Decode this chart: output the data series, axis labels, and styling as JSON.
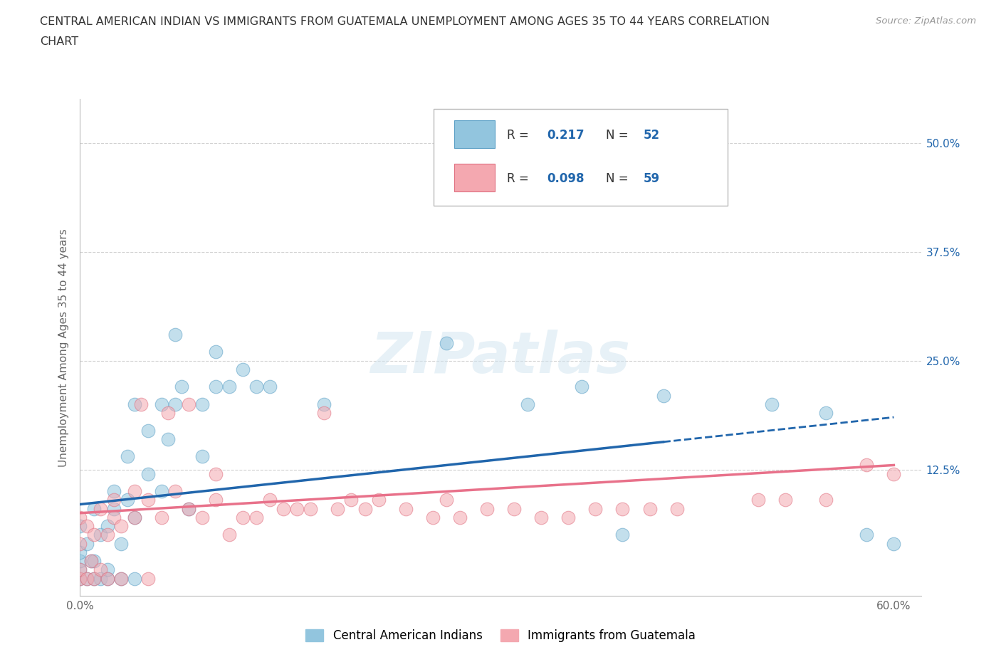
{
  "title_line1": "CENTRAL AMERICAN INDIAN VS IMMIGRANTS FROM GUATEMALA UNEMPLOYMENT AMONG AGES 35 TO 44 YEARS CORRELATION",
  "title_line2": "CHART",
  "source": "Source: ZipAtlas.com",
  "ylabel": "Unemployment Among Ages 35 to 44 years",
  "xlim": [
    0.0,
    0.62
  ],
  "ylim": [
    -0.02,
    0.55
  ],
  "xticks": [
    0.0,
    0.1,
    0.2,
    0.3,
    0.4,
    0.5,
    0.6
  ],
  "xticklabels": [
    "0.0%",
    "",
    "",
    "",
    "",
    "",
    "60.0%"
  ],
  "yticks": [
    0.0,
    0.125,
    0.25,
    0.375,
    0.5
  ],
  "right_yticklabels": [
    "",
    "12.5%",
    "25.0%",
    "37.5%",
    "50.0%"
  ],
  "R_blue": "0.217",
  "N_blue": "52",
  "R_pink": "0.098",
  "N_pink": "59",
  "blue_color": "#92c5de",
  "pink_color": "#f4a8b0",
  "trend_blue": "#2166ac",
  "trend_pink": "#e8718a",
  "watermark_text": "ZIPatlas",
  "legend_entries": [
    "Central American Indians",
    "Immigrants from Guatemala"
  ],
  "blue_trend_x": [
    0.0,
    0.6
  ],
  "blue_trend_y": [
    0.085,
    0.185
  ],
  "blue_trend_solid_end": 0.43,
  "pink_trend_x": [
    0.0,
    0.6
  ],
  "pink_trend_y": [
    0.075,
    0.13
  ],
  "grid_color": "#cccccc",
  "background_color": "#ffffff",
  "blue_scatter_x": [
    0.0,
    0.0,
    0.0,
    0.0,
    0.0,
    0.005,
    0.005,
    0.008,
    0.01,
    0.01,
    0.01,
    0.015,
    0.015,
    0.02,
    0.02,
    0.02,
    0.025,
    0.025,
    0.03,
    0.03,
    0.035,
    0.035,
    0.04,
    0.04,
    0.04,
    0.05,
    0.05,
    0.06,
    0.06,
    0.065,
    0.07,
    0.07,
    0.075,
    0.08,
    0.09,
    0.09,
    0.1,
    0.1,
    0.11,
    0.12,
    0.13,
    0.14,
    0.18,
    0.27,
    0.33,
    0.37,
    0.4,
    0.43,
    0.51,
    0.55,
    0.58,
    0.6
  ],
  "blue_scatter_y": [
    0.0,
    0.01,
    0.02,
    0.03,
    0.06,
    0.0,
    0.04,
    0.02,
    0.0,
    0.02,
    0.08,
    0.0,
    0.05,
    0.0,
    0.01,
    0.06,
    0.08,
    0.1,
    0.0,
    0.04,
    0.09,
    0.14,
    0.0,
    0.07,
    0.2,
    0.12,
    0.17,
    0.1,
    0.2,
    0.16,
    0.2,
    0.28,
    0.22,
    0.08,
    0.14,
    0.2,
    0.22,
    0.26,
    0.22,
    0.24,
    0.22,
    0.22,
    0.2,
    0.27,
    0.2,
    0.22,
    0.05,
    0.21,
    0.2,
    0.19,
    0.05,
    0.04
  ],
  "pink_scatter_x": [
    0.0,
    0.0,
    0.0,
    0.0,
    0.005,
    0.005,
    0.008,
    0.01,
    0.01,
    0.015,
    0.015,
    0.02,
    0.02,
    0.025,
    0.025,
    0.03,
    0.03,
    0.04,
    0.04,
    0.045,
    0.05,
    0.05,
    0.06,
    0.065,
    0.07,
    0.08,
    0.08,
    0.09,
    0.1,
    0.1,
    0.11,
    0.12,
    0.13,
    0.14,
    0.15,
    0.16,
    0.17,
    0.18,
    0.19,
    0.2,
    0.21,
    0.22,
    0.24,
    0.26,
    0.27,
    0.28,
    0.3,
    0.32,
    0.34,
    0.36,
    0.38,
    0.4,
    0.42,
    0.44,
    0.5,
    0.52,
    0.55,
    0.58,
    0.6
  ],
  "pink_scatter_y": [
    0.0,
    0.01,
    0.04,
    0.07,
    0.0,
    0.06,
    0.02,
    0.0,
    0.05,
    0.01,
    0.08,
    0.0,
    0.05,
    0.07,
    0.09,
    0.0,
    0.06,
    0.07,
    0.1,
    0.2,
    0.0,
    0.09,
    0.07,
    0.19,
    0.1,
    0.08,
    0.2,
    0.07,
    0.09,
    0.12,
    0.05,
    0.07,
    0.07,
    0.09,
    0.08,
    0.08,
    0.08,
    0.19,
    0.08,
    0.09,
    0.08,
    0.09,
    0.08,
    0.07,
    0.09,
    0.07,
    0.08,
    0.08,
    0.07,
    0.07,
    0.08,
    0.08,
    0.08,
    0.08,
    0.09,
    0.09,
    0.09,
    0.13,
    0.12
  ]
}
